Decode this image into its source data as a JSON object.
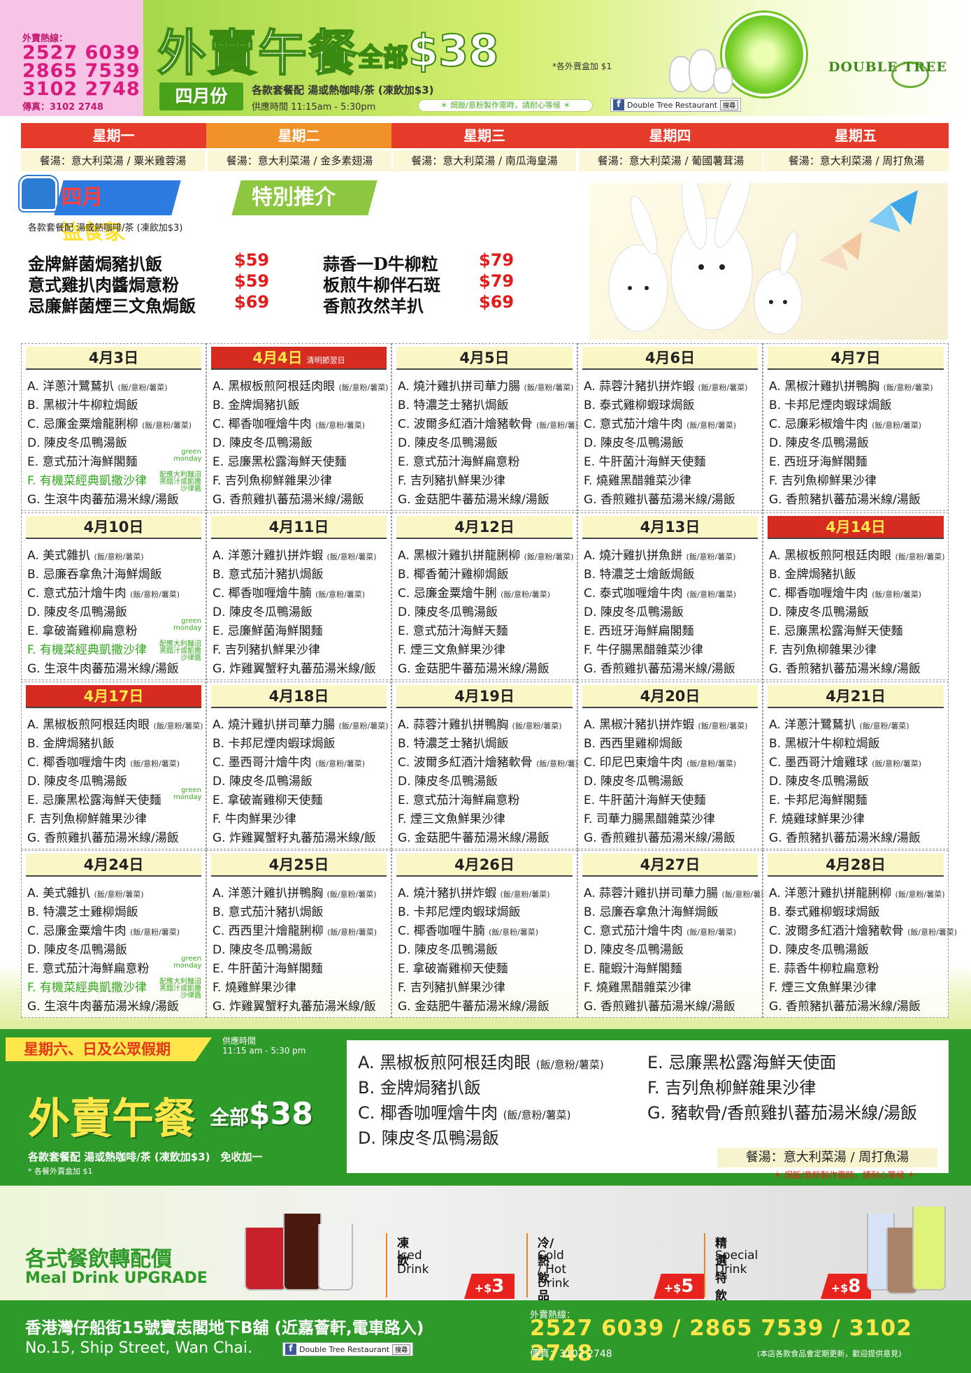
{
  "header": {
    "hotline_label": "外賣熱線：",
    "phones": [
      "2527 6039",
      "2865 7539",
      "3102 2748"
    ],
    "fax": "傳真：3102 2748",
    "title": "外賣午餐",
    "price_prefix": "全部",
    "price": "$38",
    "box_fee": "*各外賣盒加 $1",
    "month": "四月份",
    "set_info": "各款套餐配 湯或熱咖啡/茶 (凍飲加$3)",
    "hours": "供應時間 11:15am - 5:30pm",
    "note": "＊ 焗飯/意粉製作需時，請耐心等候 ＊",
    "facebook": "Double Tree Restaurant",
    "search": "搜尋",
    "logo_text": "DOUBLE TREE"
  },
  "weekdays": [
    "星期一",
    "星期二",
    "星期三",
    "星期四",
    "星期五"
  ],
  "weekday_colors": [
    "#e63a2a",
    "#f0912a",
    "#e63a2a",
    "#e63a2a",
    "#e63a2a"
  ],
  "soups": [
    "餐湯：意大利菜湯 / 粟米雞蓉湯",
    "餐湯：意大利菜湯 / 金多素翅湯",
    "餐湯：意大利菜湯 / 南瓜海皇湯",
    "餐湯：意大利菜湯 / 葡國薯茸湯",
    "餐湯：意大利菜湯 / 周打魚湯"
  ],
  "promo": {
    "badge_a": "四月",
    "badge_a2": "益食家",
    "badge_b": "特別推介",
    "sub": "各款套餐配 湯或熱咖啡/茶 (凍飲加$3)",
    "items": [
      {
        "name": "金牌鮮菌焗豬扒飯",
        "price": "$59"
      },
      {
        "name": "意式雞扒肉醬焗意粉",
        "price": "$59"
      },
      {
        "name": "忌廉鮮菌煙三文魚焗飯",
        "price": "$69"
      },
      {
        "name": "蒜香一D牛柳粒",
        "price": "$79"
      },
      {
        "name": "板煎牛柳伴石斑",
        "price": "$79"
      },
      {
        "name": "香煎孜然羊扒",
        "price": "$69"
      }
    ]
  },
  "green_monday": "green monday",
  "green_note": "配應大利麵沼 黑醋汁或凱撒沙律醬",
  "days": [
    {
      "date": "4月3日",
      "items": [
        "A. 洋蔥汁鷺鶿扒",
        "B. 黑椒汁牛柳粒焗飯",
        "C. 忌廉金粟燴龍脷柳",
        "D. 陳皮冬瓜鴨湯飯",
        "E. 意式茄汁海鮮閣麵",
        "F. 有機菜經典凱撒沙律",
        "G. 生滾牛肉蕃茄湯米線/湯飯"
      ],
      "marks": [
        0,
        2
      ],
      "green": 5,
      "gm": 4
    },
    {
      "date": "4月4日",
      "red": true,
      "holiday": "清明節翌日",
      "items": [
        "A. 黑椒板煎阿根廷肉眼",
        "B. 金牌焗豬扒飯",
        "C. 椰香咖喱燴牛肉",
        "D. 陳皮冬瓜鴨湯飯",
        "E. 忌廉黑松露海鮮天使麵",
        "F. 吉列魚柳鮮雜果沙律",
        "G. 香煎雞扒蕃茄湯米線/湯飯"
      ],
      "marks": [
        0,
        2
      ]
    },
    {
      "date": "4月5日",
      "items": [
        "A. 燒汁雞扒拼司華力腸",
        "B. 特濃芝士豬扒焗飯",
        "C. 波爾多紅酒汁燴豬軟骨",
        "D. 陳皮冬瓜鴨湯飯",
        "E. 意式茄汁海鮮扁意粉",
        "F. 吉列豬扒鮮果沙律",
        "G. 金菇肥牛蕃茄湯米線/湯飯"
      ],
      "marks": [
        0,
        2
      ]
    },
    {
      "date": "4月6日",
      "items": [
        "A. 蒜蓉汁豬扒拼炸蝦",
        "B. 泰式雞柳蝦球焗飯",
        "C. 意式茄汁燴牛肉",
        "D. 陳皮冬瓜鴨湯飯",
        "E. 牛肝菌汁海鮮天使麵",
        "F. 燒雞黑醋雜菜沙律",
        "G. 香煎雞扒蕃茄湯米線/湯飯"
      ],
      "marks": [
        0,
        2
      ]
    },
    {
      "date": "4月7日",
      "items": [
        "A. 黑椒汁雞扒拼鴨胸",
        "B. 卡邦尼煙肉蝦球焗飯",
        "C. 忌廉彩椒燴牛肉",
        "D. 陳皮冬瓜鴨湯飯",
        "E. 西班牙海鮮閣麵",
        "F. 吉列魚柳鮮果沙律",
        "G. 香煎豬扒蕃茄湯米線/湯飯"
      ],
      "marks": [
        0,
        2
      ]
    },
    {
      "date": "4月10日",
      "items": [
        "A. 美式雜扒",
        "B. 忌廉吞拿魚汁海鮮焗飯",
        "C. 意式茄汁燴牛肉",
        "D. 陳皮冬瓜鴨湯飯",
        "E. 拿破崙雞柳扁意粉",
        "F. 有機菜經典凱撒沙律",
        "G. 生滾牛肉蕃茄湯米線/湯飯"
      ],
      "marks": [
        0,
        2
      ],
      "green": 5,
      "gm": 4
    },
    {
      "date": "4月11日",
      "items": [
        "A. 洋蔥汁雞扒拼炸蝦",
        "B. 意式茄汁豬扒焗飯",
        "C. 椰香咖喱燴牛腩",
        "D. 陳皮冬瓜鴨湯飯",
        "E. 忌廉鮮菌海鮮閣麵",
        "F. 吉列豬扒鮮果沙律",
        "G. 炸雞翼蟹籽丸蕃茄湯米線/飯"
      ],
      "marks": [
        0,
        2
      ]
    },
    {
      "date": "4月12日",
      "items": [
        "A. 黑椒汁雞扒拼龍脷柳",
        "B. 椰香葡汁雞柳焗飯",
        "C. 忌廉金粟燴牛脷",
        "D. 陳皮冬瓜鴨湯飯",
        "E. 意式茄汁海鮮天麵",
        "F. 煙三文魚鮮果沙律",
        "G. 金菇肥牛蕃茄湯米線/湯飯"
      ],
      "marks": [
        0,
        2
      ]
    },
    {
      "date": "4月13日",
      "items": [
        "A. 燒汁雞扒拼魚餅",
        "B. 特濃芝士燴飯焗飯",
        "C. 泰式咖喱燴牛肉",
        "D. 陳皮冬瓜鴨湯飯",
        "E. 西班牙海鮮扁閣麵",
        "F. 牛仔腸黑醋雜菜沙律",
        "G. 香煎雞扒蕃茄湯米線/湯飯"
      ],
      "marks": [
        0,
        2
      ]
    },
    {
      "date": "4月14日",
      "red": true,
      "items": [
        "A. 黑椒板煎阿根廷肉眼",
        "B. 金牌焗豬扒飯",
        "C. 椰香咖喱燴牛肉",
        "D. 陳皮冬瓜鴨湯飯",
        "E. 忌廉黑松露海鮮天使麵",
        "F. 吉列魚柳雜果沙律",
        "G. 香煎豬扒蕃茄湯米線/湯飯"
      ],
      "marks": [
        0,
        2
      ]
    },
    {
      "date": "4月17日",
      "red": true,
      "items": [
        "A. 黑椒板煎阿根廷肉眼",
        "B. 金牌焗豬扒飯",
        "C. 椰香咖喱燴牛肉",
        "D. 陳皮冬瓜鴨湯飯",
        "E. 忌廉黑松露海鮮天使麵",
        "F. 吉列魚柳鮮雜果沙律",
        "G. 香煎雞扒蕃茄湯米線/湯飯"
      ],
      "marks": [
        0,
        2
      ],
      "gm": 4
    },
    {
      "date": "4月18日",
      "items": [
        "A. 燒汁雞扒拼司華力腸",
        "B. 卡邦尼煙肉蝦球焗飯",
        "C. 墨西哥汁燴牛肉",
        "D. 陳皮冬瓜鴨湯飯",
        "E. 拿破崙雞柳天使麵",
        "F. 牛肉鮮果沙律",
        "G. 炸雞翼蟹籽丸蕃茄湯米線/飯"
      ],
      "marks": [
        0,
        2
      ]
    },
    {
      "date": "4月19日",
      "items": [
        "A. 蒜蓉汁雞扒拼鴨胸",
        "B. 特濃芝士豬扒焗飯",
        "C. 波爾多紅酒汁燴豬軟骨",
        "D. 陳皮冬瓜鴨湯飯",
        "E. 意式茄汁海鮮扁意粉",
        "F. 煙三文魚鮮果沙律",
        "G. 金菇肥牛蕃茄湯米線/湯飯"
      ],
      "marks": [
        0,
        2
      ]
    },
    {
      "date": "4月20日",
      "items": [
        "A. 黑椒汁豬扒拼炸蝦",
        "B. 西西里雞柳焗飯",
        "C. 印尼巴東燴牛肉",
        "D. 陳皮冬瓜鴨湯飯",
        "E. 牛肝菌汁海鮮天使麵",
        "F. 司華力腸黑醋雜菜沙律",
        "G. 香煎雞扒蕃茄湯米線/湯飯"
      ],
      "marks": [
        0,
        2
      ]
    },
    {
      "date": "4月21日",
      "items": [
        "A. 洋蔥汁鷺鶿扒",
        "B. 黑椒汁牛柳粒焗飯",
        "C. 墨西哥汁燴雞球",
        "D. 陳皮冬瓜鴨湯飯",
        "E. 卡邦尼海鮮閣麵",
        "F. 燒雞球鮮果沙律",
        "G. 香煎豬扒蕃茄湯米線/湯飯"
      ],
      "marks": [
        0,
        2
      ]
    },
    {
      "date": "4月24日",
      "items": [
        "A. 美式雜扒",
        "B. 特濃芝士雞柳焗飯",
        "C. 忌廉金粟燴牛肉",
        "D. 陳皮冬瓜鴨湯飯",
        "E. 意式茄汁海鮮扁意粉",
        "F. 有機菜經典凱撒沙律",
        "G. 生滾牛肉蕃茄湯米線/湯飯"
      ],
      "marks": [
        0,
        2
      ],
      "green": 5,
      "gm": 4
    },
    {
      "date": "4月25日",
      "items": [
        "A. 洋蔥汁雞扒拼鴨胸",
        "B. 意式茄汁豬扒焗飯",
        "C. 西西里汁燴龍脷柳",
        "D. 陳皮冬瓜鴨湯飯",
        "E. 牛肝菌汁海鮮閣麵",
        "F. 燒雞鮮果沙律",
        "G. 炸雞翼蟹籽丸蕃茄湯米線/飯"
      ],
      "marks": [
        0,
        2
      ]
    },
    {
      "date": "4月26日",
      "items": [
        "A. 燒汁豬扒拼炸蝦",
        "B. 卡邦尼煙肉蝦球焗飯",
        "C. 椰香咖喱牛腩",
        "D. 陳皮冬瓜鴨湯飯",
        "E. 拿破崙雞柳天使麵",
        "F. 吉列豬扒鮮果沙律",
        "G. 金菇肥牛蕃茄湯米線/湯飯"
      ],
      "marks": [
        0,
        2
      ]
    },
    {
      "date": "4月27日",
      "items": [
        "A. 蒜蓉汁雞扒拼司華力腸",
        "B. 忌廉吞拿魚汁海鮮焗飯",
        "C. 意式茄汁燴牛肉",
        "D. 陳皮冬瓜鴨湯飯",
        "E. 龍蝦汁海鮮閣麵",
        "F. 燒雞黑醋雜菜沙律",
        "G. 香煎雞扒蕃茄湯米線/湯飯"
      ],
      "marks": [
        0,
        2
      ]
    },
    {
      "date": "4月28日",
      "items": [
        "A. 洋蔥汁雞扒拼龍脷柳",
        "B. 泰式雞柳蝦球焗飯",
        "C. 波爾多紅酒汁燴豬軟骨",
        "D. 陳皮冬瓜鴨湯飯",
        "E. 蒜香牛柳粒扁意粉",
        "F. 煙三文魚鮮果沙律",
        "G. 香煎豬扒蕃茄湯米線/湯飯"
      ],
      "marks": [
        0,
        2
      ]
    }
  ],
  "rice_tag": "(飯/意粉/薯菜)",
  "weekend": {
    "tag": "星期六、日及公眾假期",
    "time_label": "供應時間",
    "time": "11:15 am - 5:30 pm",
    "title": "外賣午餐",
    "price_prefix": "全部",
    "price": "$38",
    "sub": "各款套餐配 湯或熱咖啡/茶 (凍飲加$3)　免收加一",
    "fee": "* 各餐外賣盒加 $1",
    "items": [
      "A. 黑椒板煎阿根廷肉眼",
      "B. 金牌焗豬扒飯",
      "C. 椰香咖喱燴牛肉",
      "D. 陳皮冬瓜鴨湯飯",
      "E. 忌廉黑松露海鮮天使面",
      "F. 吉列魚柳鮮雜果沙律",
      "G. 豬軟骨/香煎雞扒蕃茄湯米線/湯飯"
    ],
    "soup": "餐湯：意大利菜湯 / 周打魚湯",
    "note": "＊ 焗飯/意粉製作需時，請耐心等候 ＊"
  },
  "drinks": {
    "title": "各式餐飲轉配價",
    "subtitle": "Meal Drink UPGRADE",
    "items": [
      {
        "zh": "凍飲",
        "en": "Iced Drink",
        "plus": "+$",
        "price": "3"
      },
      {
        "zh": "冷/熱飲品",
        "en": "Cold / Hot Drink",
        "plus": "+$",
        "price": "5"
      },
      {
        "zh": "精選特飲",
        "en": "Special Drink",
        "plus": "+$",
        "price": "8"
      }
    ]
  },
  "footer": {
    "address_zh": "香港灣仔船街15號寶志閣地下B舖 (近嘉薈軒,電車路入)",
    "address_en": "No.15, Ship Street, Wan Chai.",
    "facebook": "Double Tree Restaurant",
    "search": "搜尋",
    "hotline_label": "外賣熱線：",
    "phones": "2527 6039 / 2865 7539 / 3102 2748",
    "fax": "傳真：3102 2748",
    "note": "(本店各款食品會定期更新，歡迎提供意見)"
  }
}
